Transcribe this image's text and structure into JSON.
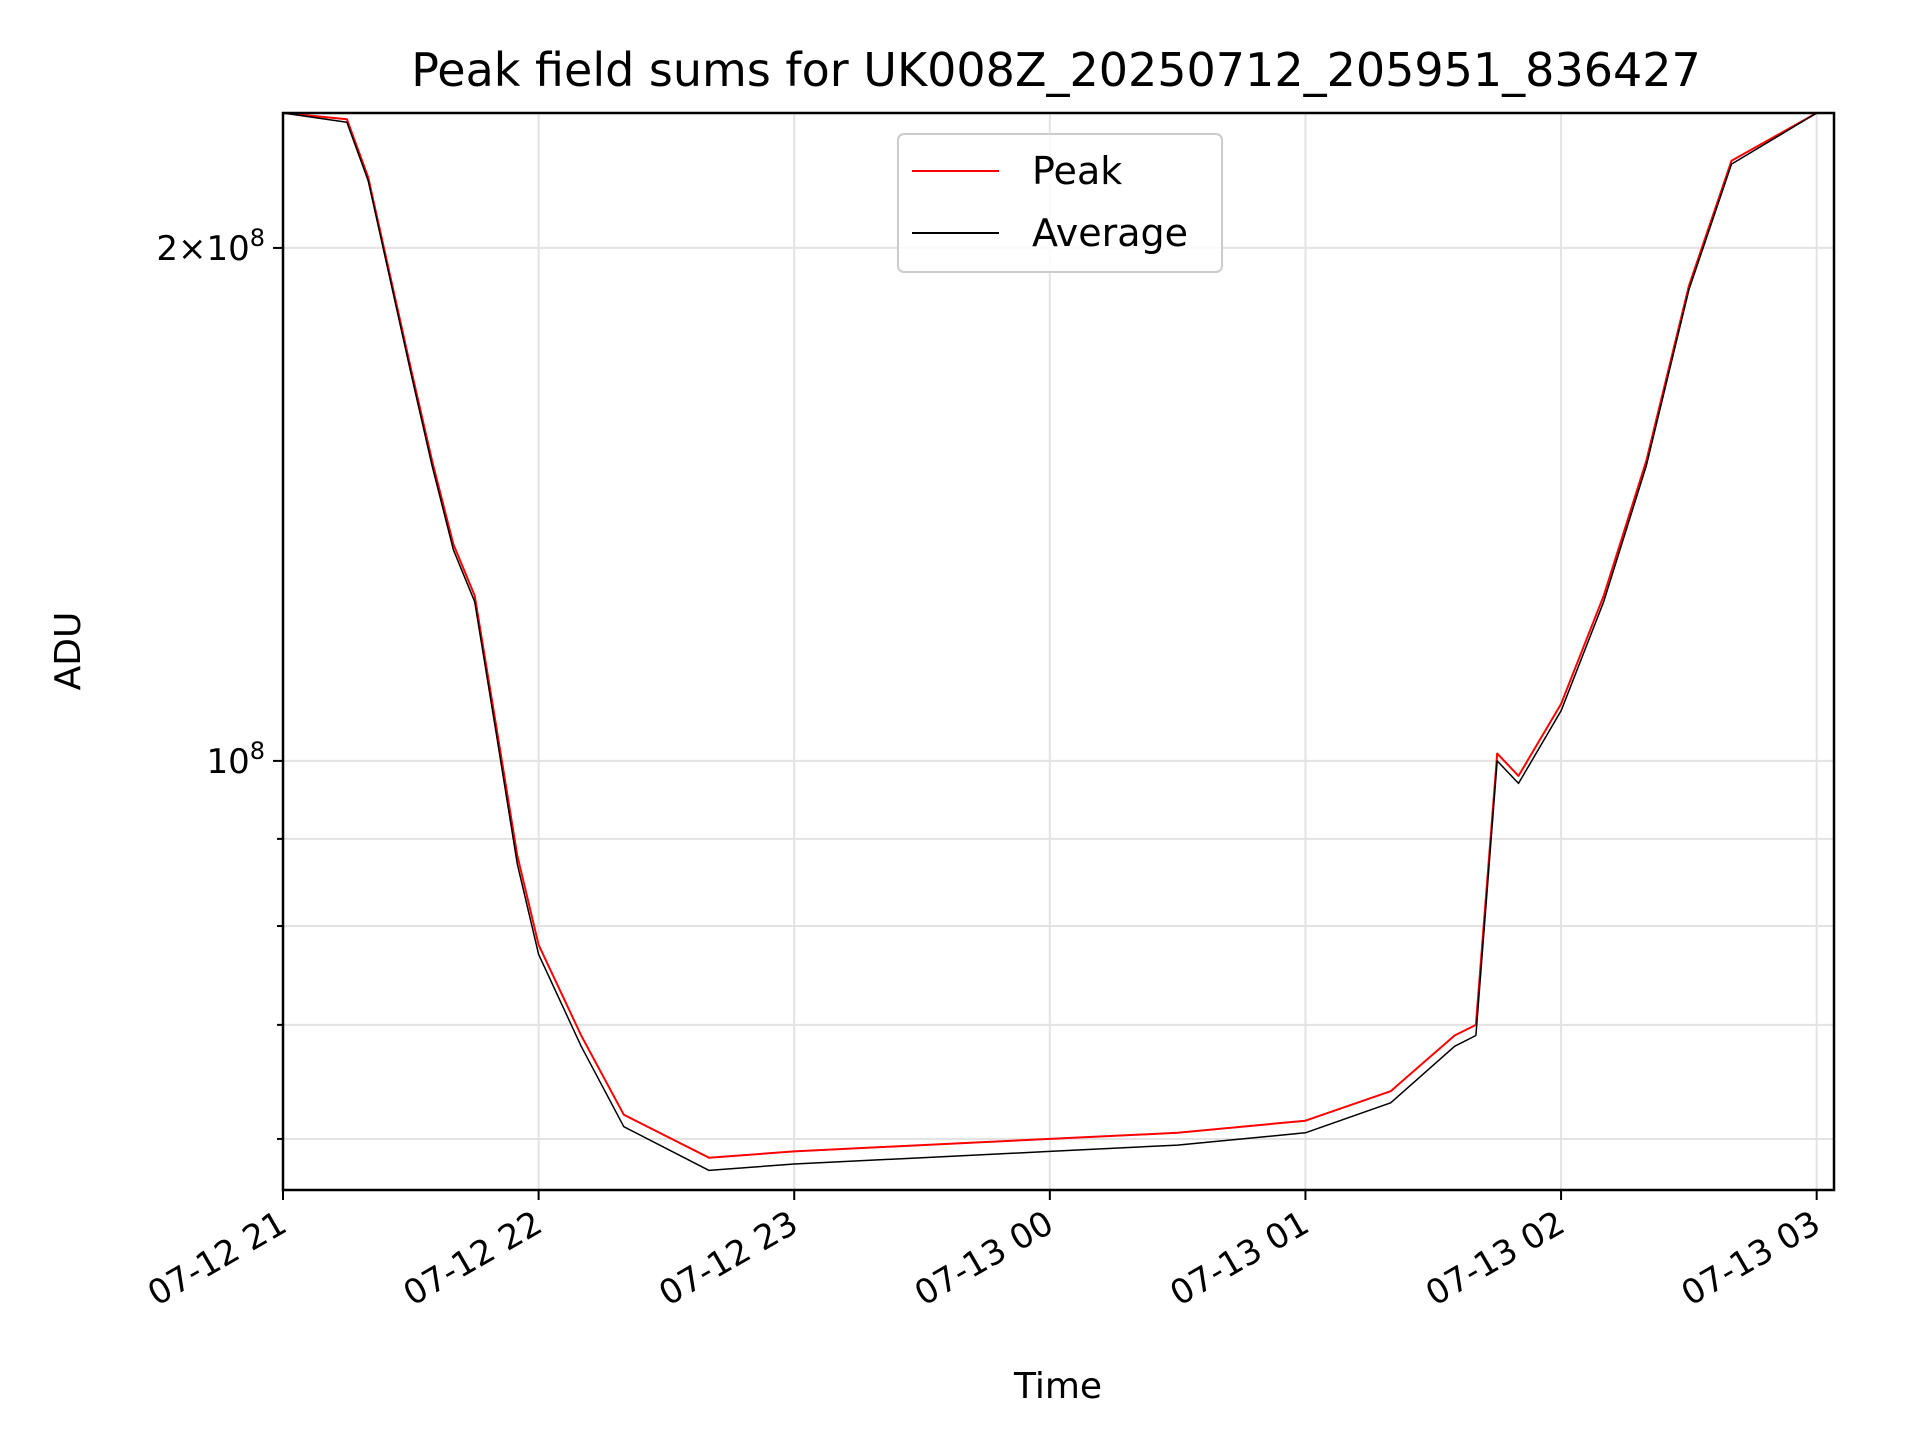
{
  "chart_data": {
    "type": "line",
    "title": "Peak field sums for UK008Z_20250712_205951_836427",
    "xlabel": "Time",
    "ylabel": "ADU",
    "yscale": "log",
    "ylim": [
      56000000,
      240000000
    ],
    "xlim": [
      "2025-07-12 21:00",
      "2025-07-13 03:00"
    ],
    "x_tick_labels": [
      "07-12 21",
      "07-12 22",
      "07-12 23",
      "07-13 00",
      "07-13 01",
      "07-13 02",
      "07-13 03"
    ],
    "y_tick_labels": [
      {
        "value": 100000000,
        "base": "10",
        "exp": "8",
        "prefix": ""
      },
      {
        "value": 200000000,
        "base": "10",
        "exp": "8",
        "prefix": "2×"
      }
    ],
    "grid": true,
    "legend": {
      "placement": "upper center"
    },
    "series": [
      {
        "name": "Peak",
        "color": "#ff0000",
        "points": [
          [
            "2025-07-12 21:00",
            240000000
          ],
          [
            "2025-07-12 21:15",
            238000000
          ],
          [
            "2025-07-12 21:20",
            220000000
          ],
          [
            "2025-07-12 21:30",
            170000000
          ],
          [
            "2025-07-12 21:35",
            150000000
          ],
          [
            "2025-07-12 21:40",
            134000000
          ],
          [
            "2025-07-12 21:45",
            125000000
          ],
          [
            "2025-07-12 21:50",
            105000000
          ],
          [
            "2025-07-12 21:55",
            88000000
          ],
          [
            "2025-07-12 22:00",
            78000000
          ],
          [
            "2025-07-12 22:10",
            69000000
          ],
          [
            "2025-07-12 22:20",
            62000000
          ],
          [
            "2025-07-12 22:40",
            58500000
          ],
          [
            "2025-07-12 23:00",
            59000000
          ],
          [
            "2025-07-12 23:30",
            59500000
          ],
          [
            "2025-07-13 00:00",
            60000000
          ],
          [
            "2025-07-13 00:30",
            60500000
          ],
          [
            "2025-07-13 01:00",
            61500000
          ],
          [
            "2025-07-13 01:20",
            64000000
          ],
          [
            "2025-07-13 01:35",
            69000000
          ],
          [
            "2025-07-13 01:40",
            70000000
          ],
          [
            "2025-07-13 01:45",
            101000000
          ],
          [
            "2025-07-13 01:50",
            98000000
          ],
          [
            "2025-07-13 02:00",
            108000000
          ],
          [
            "2025-07-13 02:10",
            125000000
          ],
          [
            "2025-07-13 02:20",
            150000000
          ],
          [
            "2025-07-13 02:30",
            190000000
          ],
          [
            "2025-07-13 02:40",
            225000000
          ],
          [
            "2025-07-13 03:00",
            240000000
          ]
        ]
      },
      {
        "name": "Average",
        "color": "#000000",
        "points": [
          [
            "2025-07-12 21:00",
            240000000
          ],
          [
            "2025-07-12 21:15",
            237000000
          ],
          [
            "2025-07-12 21:20",
            219000000
          ],
          [
            "2025-07-12 21:30",
            169000000
          ],
          [
            "2025-07-12 21:35",
            149000000
          ],
          [
            "2025-07-12 21:40",
            133000000
          ],
          [
            "2025-07-12 21:45",
            124000000
          ],
          [
            "2025-07-12 21:50",
            104000000
          ],
          [
            "2025-07-12 21:55",
            87000000
          ],
          [
            "2025-07-12 22:00",
            77000000
          ],
          [
            "2025-07-12 22:10",
            68000000
          ],
          [
            "2025-07-12 22:20",
            61000000
          ],
          [
            "2025-07-12 22:40",
            57500000
          ],
          [
            "2025-07-12 23:00",
            58000000
          ],
          [
            "2025-07-12 23:30",
            58500000
          ],
          [
            "2025-07-13 00:00",
            59000000
          ],
          [
            "2025-07-13 00:30",
            59500000
          ],
          [
            "2025-07-13 01:00",
            60500000
          ],
          [
            "2025-07-13 01:20",
            63000000
          ],
          [
            "2025-07-13 01:35",
            68000000
          ],
          [
            "2025-07-13 01:40",
            69000000
          ],
          [
            "2025-07-13 01:45",
            100000000
          ],
          [
            "2025-07-13 01:50",
            97000000
          ],
          [
            "2025-07-13 02:00",
            107000000
          ],
          [
            "2025-07-13 02:10",
            124000000
          ],
          [
            "2025-07-13 02:20",
            149000000
          ],
          [
            "2025-07-13 02:30",
            189000000
          ],
          [
            "2025-07-13 02:40",
            224000000
          ],
          [
            "2025-07-13 03:00",
            240000000
          ]
        ]
      }
    ]
  }
}
